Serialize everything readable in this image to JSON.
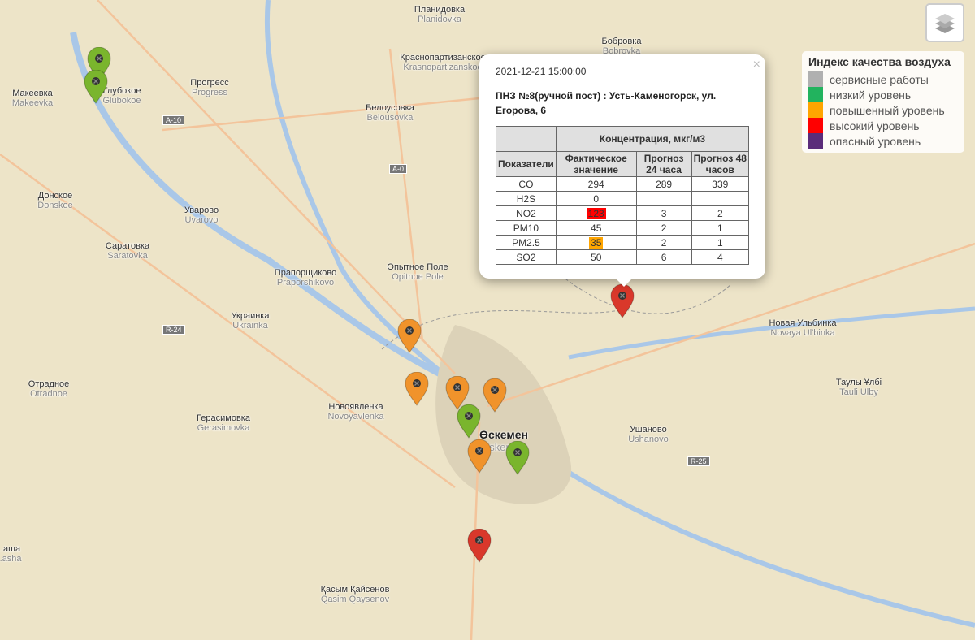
{
  "map_labels": [
    {
      "name": "Планидовка",
      "lat": "Planidovka"
    },
    {
      "name": "Бобровка",
      "lat": "Bobrovka"
    },
    {
      "name": "Краснопартизанское",
      "lat": "Krasnopartizanskoe"
    },
    {
      "name": "Макеевка",
      "lat": "Makeevka"
    },
    {
      "name": "Глубокое",
      "lat": "Glubokoe"
    },
    {
      "name": "Прогресс",
      "lat": "Progress"
    },
    {
      "name": "Белоусовка",
      "lat": "Belousovka"
    },
    {
      "name": "Донское",
      "lat": "Donskoe"
    },
    {
      "name": "Уварово",
      "lat": "Uvarovo"
    },
    {
      "name": "Саратовка",
      "lat": "Saratovka"
    },
    {
      "name": "Прапорщиково",
      "lat": "Praporshikovo"
    },
    {
      "name": "Опытное Поле",
      "lat": "Opitnoe Pole"
    },
    {
      "name": "Украинка",
      "lat": "Ukrainka"
    },
    {
      "name": "Отрадное",
      "lat": "Otradnoe"
    },
    {
      "name": "Новоявленка",
      "lat": "Novoyavlenka"
    },
    {
      "name": "Герасимовка",
      "lat": "Gerasimovka"
    },
    {
      "name": "Өскемен",
      "lat": "Oskemen"
    },
    {
      "name": "Ушаново",
      "lat": "Ushanovo"
    },
    {
      "name": "Новая Ульбинка",
      "lat": "Novaya Ul'binka"
    },
    {
      "name": "Таулы Ұлбі",
      "lat": "Tauli Ulby"
    },
    {
      "name": "Қасым Қайсенов",
      "lat": "Qasim Qaysenov"
    },
    {
      "name": "...аша",
      "lat": "...asha"
    }
  ],
  "roads": [
    "A-10",
    "A-0",
    "R-24",
    "R-25"
  ],
  "markers": [
    {
      "color": "#7ab52d",
      "status": "low"
    },
    {
      "color": "#7ab52d",
      "status": "low"
    },
    {
      "color": "#f0932b",
      "status": "elevated"
    },
    {
      "color": "#f0932b",
      "status": "elevated"
    },
    {
      "color": "#f0932b",
      "status": "elevated"
    },
    {
      "color": "#f0932b",
      "status": "elevated"
    },
    {
      "color": "#7ab52d",
      "status": "low"
    },
    {
      "color": "#f0932b",
      "status": "elevated"
    },
    {
      "color": "#7ab52d",
      "status": "low"
    },
    {
      "color": "#d9382b",
      "status": "high"
    },
    {
      "color": "#d9382b",
      "status": "high"
    }
  ],
  "legend": {
    "title": "Индекс качества воздуха",
    "items": [
      {
        "label": "сервисные работы",
        "color": "#b0b0b0"
      },
      {
        "label": "низкий уровень",
        "color": "#22b35e"
      },
      {
        "label": "повышенный уровень",
        "color": "#ffa500"
      },
      {
        "label": "высокий уровень",
        "color": "#ff0000"
      },
      {
        "label": "опасный уровень",
        "color": "#5b2c7a"
      }
    ]
  },
  "popup": {
    "close": "×",
    "timestamp": "2021-12-21 15:00:00",
    "title": "ПНЗ №8(ручной пост) : Усть-Каменогорск, ул. Егорова, 6",
    "header_group": "Концентрация, мкг/м3",
    "col_indicator": "Показатели",
    "col_actual": "Фактическое значение",
    "col_24": "Прогноз 24 часа",
    "col_48": "Прогноз 48 часов",
    "rows": [
      {
        "name": "CO",
        "actual": "294",
        "f24": "289",
        "f48": "339",
        "hl": ""
      },
      {
        "name": "H2S",
        "actual": "0",
        "f24": "",
        "f48": "",
        "hl": ""
      },
      {
        "name": "NO2",
        "actual": "123",
        "f24": "3",
        "f48": "2",
        "hl": "#ff0000"
      },
      {
        "name": "PM10",
        "actual": "45",
        "f24": "2",
        "f48": "1",
        "hl": ""
      },
      {
        "name": "PM2.5",
        "actual": "35",
        "f24": "2",
        "f48": "1",
        "hl": "#ffa500"
      },
      {
        "name": "SO2",
        "actual": "50",
        "f24": "6",
        "f48": "4",
        "hl": ""
      }
    ]
  }
}
